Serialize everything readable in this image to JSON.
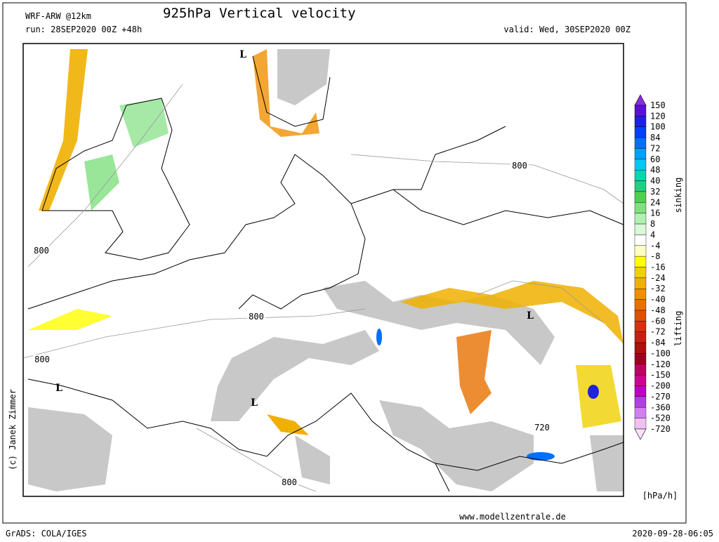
{
  "header": {
    "model": "WRF-ARW @12km",
    "title": "925hPa Vertical velocity",
    "run": "run: 28SEP2020 00Z +48h",
    "valid": "valid: Wed, 30SEP2020 00Z"
  },
  "map": {
    "labels": [
      "L",
      "L",
      "L",
      "L",
      "800",
      "800",
      "800",
      "800",
      "800",
      "720"
    ]
  },
  "colorbar": {
    "ticks": [
      150,
      120,
      100,
      84,
      72,
      60,
      48,
      40,
      32,
      24,
      16,
      8,
      4,
      -4,
      -8,
      -16,
      -24,
      -32,
      -40,
      -48,
      -60,
      -72,
      -84,
      -100,
      -120,
      -150,
      -200,
      -270,
      -360,
      -520,
      -720
    ],
    "colors": [
      "#8a2be2",
      "#5a10d8",
      "#2020e0",
      "#0040ff",
      "#0070ff",
      "#00a0ff",
      "#00c8f0",
      "#00d8b0",
      "#20d080",
      "#50d050",
      "#80e080",
      "#b0f0b0",
      "#d8f8d8",
      "#ffffff",
      "#ffffc0",
      "#ffff00",
      "#f0d000",
      "#f0b000",
      "#f09000",
      "#e87000",
      "#e05000",
      "#d83010",
      "#c82010",
      "#b01010",
      "#a00020",
      "#c00060",
      "#d00090",
      "#c000c0",
      "#b040e0",
      "#d080f0",
      "#f0c0f0",
      "#ffe0ff"
    ],
    "upper_label": "sinking",
    "lower_label": "lifting",
    "unit": "[hPa/h]"
  },
  "footer": {
    "website": "www.modellzentrale.de",
    "copyright": "(c) Janek Zimmer",
    "software": "GrADS: COLA/IGES",
    "timestamp": "2020-09-28-06:05"
  }
}
